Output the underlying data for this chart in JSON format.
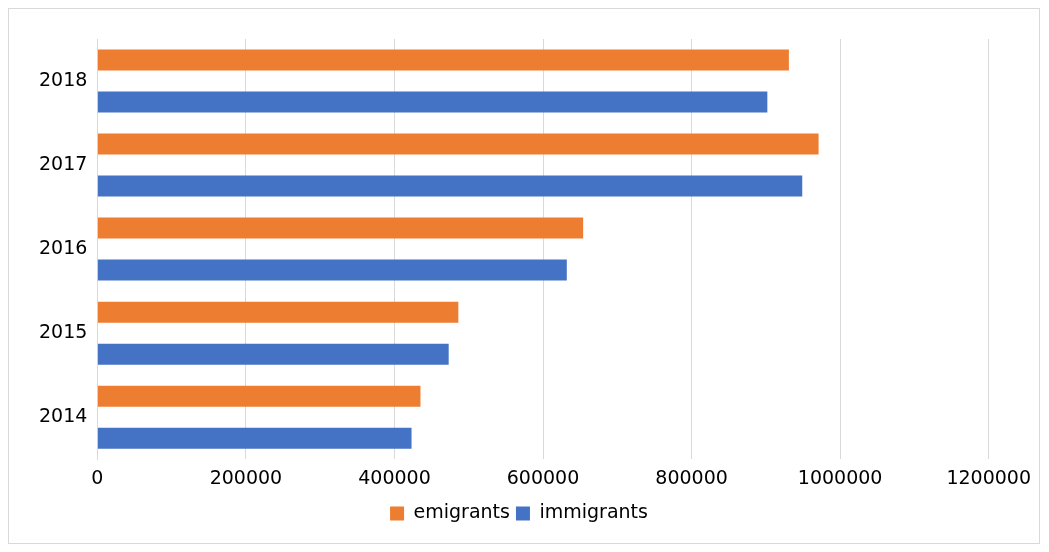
{
  "chart_data": {
    "type": "bar",
    "orientation": "horizontal",
    "categories": [
      "2018",
      "2017",
      "2016",
      "2015",
      "2014"
    ],
    "series": [
      {
        "name": "emigrants",
        "color": "#ed7d31",
        "values": [
          931000,
          971000,
          654000,
          486000,
          435000
        ]
      },
      {
        "name": "immigrants",
        "color": "#4472c4",
        "values": [
          902000,
          949000,
          632000,
          473000,
          423000
        ]
      }
    ],
    "xlim": [
      0,
      1200000
    ],
    "xticks": [
      0,
      200000,
      400000,
      600000,
      800000,
      1000000,
      1200000
    ],
    "grid": "x",
    "legend": "bottom"
  }
}
